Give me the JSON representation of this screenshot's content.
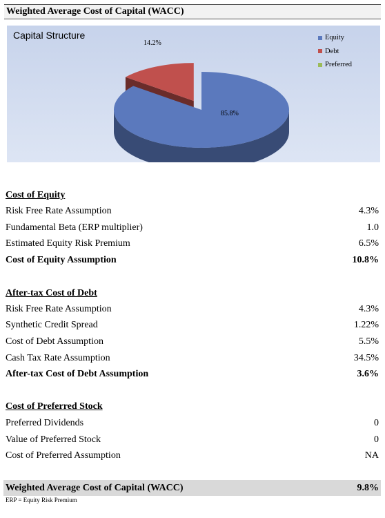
{
  "header": {
    "title": "Weighted Average Cost of Capital (WACC)"
  },
  "chart_data": {
    "type": "pie",
    "title": "Capital Structure",
    "slices": [
      {
        "name": "Equity",
        "value": 85.8,
        "label": "85.8%",
        "color": "#5b79bd"
      },
      {
        "name": "Debt",
        "value": 14.2,
        "label": "14.2%",
        "color": "#c0504d"
      },
      {
        "name": "Preferred",
        "value": 0,
        "label": "",
        "color": "#9bbb59"
      }
    ],
    "legend_position": "right"
  },
  "cost_of_equity": {
    "title": "Cost of Equity",
    "rows": [
      {
        "label": "Risk Free Rate Assumption",
        "value": "4.3%"
      },
      {
        "label": "Fundamental Beta (ERP multiplier)",
        "value": "1.0"
      },
      {
        "label": "Estimated Equity Risk Premium",
        "value": "6.5%"
      },
      {
        "label": "Cost of Equity Assumption",
        "value": "10.8%"
      }
    ]
  },
  "cost_of_debt": {
    "title": "After-tax Cost of Debt",
    "rows": [
      {
        "label": "Risk Free Rate Assumption",
        "value": "4.3%"
      },
      {
        "label": "Synthetic Credit Spread",
        "value": "1.22%"
      },
      {
        "label": "Cost of Debt Assumption",
        "value": "5.5%"
      },
      {
        "label": "Cash Tax Rate Assumption",
        "value": "34.5%"
      },
      {
        "label": "After-tax Cost of Debt Assumption",
        "value": "3.6%"
      }
    ]
  },
  "cost_of_preferred": {
    "title": "Cost of Preferred Stock",
    "rows": [
      {
        "label": "Preferred Dividends",
        "value": "0"
      },
      {
        "label": "Value of Preferred Stock",
        "value": "0"
      },
      {
        "label": "Cost of Preferred Assumption",
        "value": "NA"
      }
    ]
  },
  "wacc": {
    "label": "Weighted Average Cost of Capital (WACC)",
    "value": "9.8%"
  },
  "footnote": "ERP = Equity Risk Premium"
}
